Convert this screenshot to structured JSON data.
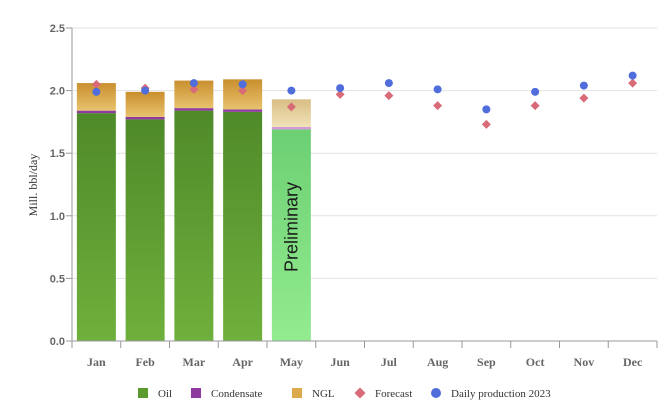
{
  "chart_data": {
    "type": "bar",
    "stacked": true,
    "ylabel": "Mill. bbl/day",
    "ylim": [
      0,
      2.5
    ],
    "yticks": [
      "0.0",
      "0.5",
      "1.0",
      "1.5",
      "2.0",
      "2.5"
    ],
    "ytick_values": [
      0,
      0.5,
      1.0,
      1.5,
      2.0,
      2.5
    ],
    "categories": [
      "Jan",
      "Feb",
      "Mar",
      "Apr",
      "May",
      "Jun",
      "Jul",
      "Aug",
      "Sep",
      "Oct",
      "Nov",
      "Dec"
    ],
    "series": [
      {
        "name": "Oil",
        "color": "#5a9a2e",
        "values": [
          1.82,
          1.77,
          1.84,
          1.83,
          1.69,
          null,
          null,
          null,
          null,
          null,
          null,
          null
        ]
      },
      {
        "name": "Condensate",
        "color": "#8e3a9e",
        "values": [
          0.02,
          0.02,
          0.02,
          0.02,
          0.02,
          null,
          null,
          null,
          null,
          null,
          null,
          null
        ]
      },
      {
        "name": "NGL",
        "color": "#dca94b",
        "values": [
          0.22,
          0.2,
          0.22,
          0.24,
          0.22,
          null,
          null,
          null,
          null,
          null,
          null,
          null
        ]
      }
    ],
    "preliminary_index": 4,
    "preliminary_colors": {
      "Oil": "#8ee08a",
      "Condensate": "#d49ad8",
      "NGL": "#ecd9a3"
    },
    "markers": [
      {
        "name": "Forecast",
        "shape": "diamond",
        "color": "#d96a78",
        "values": [
          2.05,
          2.02,
          2.01,
          2.0,
          1.87,
          1.97,
          1.96,
          1.88,
          1.73,
          1.88,
          1.94,
          2.06
        ]
      },
      {
        "name": "Daily production 2023",
        "shape": "circle",
        "color": "#4f6ddb",
        "values": [
          1.99,
          2.0,
          2.06,
          2.05,
          2.0,
          2.02,
          2.06,
          2.01,
          1.85,
          1.99,
          2.04,
          2.12
        ]
      }
    ],
    "annotation": "Preliminary",
    "legend": [
      "Oil",
      "Condensate",
      "NGL",
      "Forecast",
      "Daily production 2023"
    ],
    "legend_position": "bottom"
  }
}
